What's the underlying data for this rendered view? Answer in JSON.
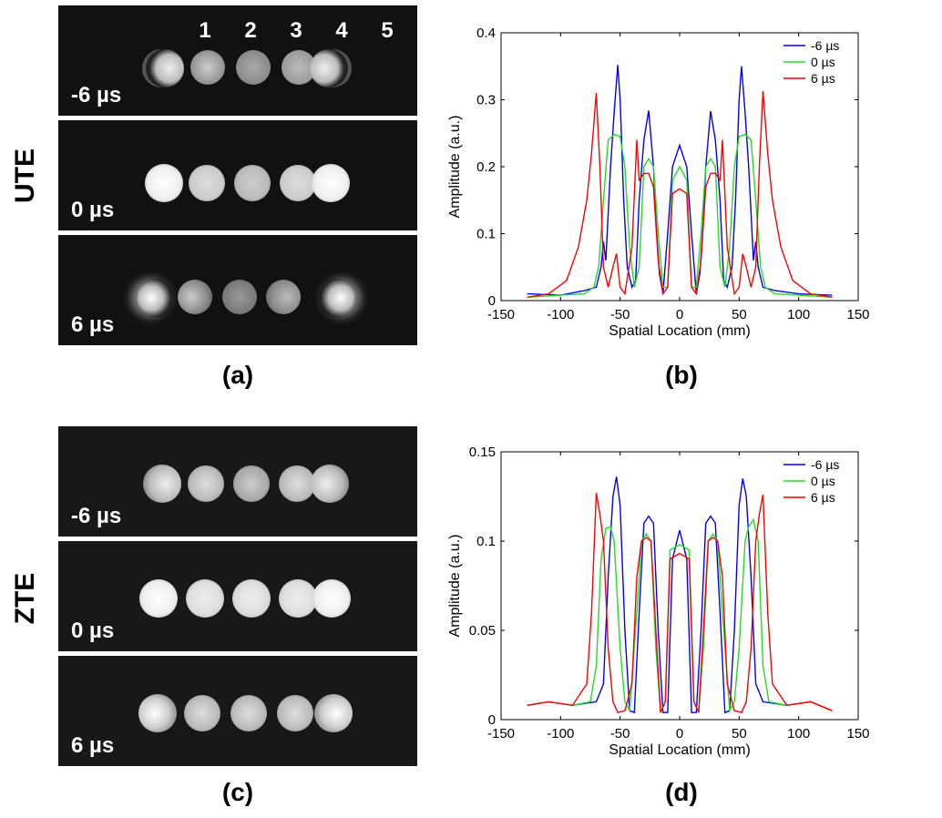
{
  "labels": {
    "ute": "UTE",
    "zte": "ZTE",
    "panel_a": "(a)",
    "panel_b": "(b)",
    "panel_c": "(c)",
    "panel_d": "(d)"
  },
  "images": {
    "column_numbers": [
      "1",
      "2",
      "3",
      "4",
      "5"
    ],
    "ute_times": [
      "-6 µs",
      "0 µs",
      "6 µs"
    ],
    "zte_times": [
      "-6 µs",
      "0 µs",
      "6 µs"
    ]
  },
  "colors": {
    "neg6": "#0000ff",
    "zero": "#22dd22",
    "pos6": "#ff0000"
  },
  "chart_data": [
    {
      "type": "line",
      "panel": "(b)",
      "xlabel": "Spatial Location (mm)",
      "ylabel": "Amplitude (a.u.)",
      "xlim": [
        -150,
        150
      ],
      "ylim": [
        0,
        0.4
      ],
      "xticks": [
        -150,
        -100,
        -50,
        0,
        50,
        100,
        150
      ],
      "yticks": [
        0,
        0.1,
        0.2,
        0.3,
        0.4
      ],
      "ytick_labels": [
        "0",
        "0.1",
        "0.2",
        "0.3",
        "0.4"
      ],
      "legend": "top-right",
      "series": [
        {
          "name": "-6 µs",
          "color": "#0000ff",
          "x": [
            -128,
            -100,
            -80,
            -70,
            -66,
            -64,
            -62,
            -58,
            -55,
            -52,
            -50,
            -47,
            -44,
            -40,
            -37,
            -34,
            -30,
            -26,
            -22,
            -20,
            -17,
            -14,
            -10,
            -6,
            0,
            6,
            10,
            14,
            17,
            20,
            22,
            26,
            30,
            34,
            37,
            40,
            44,
            47,
            50,
            52,
            55,
            58,
            62,
            64,
            66,
            70,
            80,
            100,
            128
          ],
          "y": [
            0.01,
            0.008,
            0.015,
            0.02,
            0.05,
            0.088,
            0.06,
            0.2,
            0.28,
            0.352,
            0.3,
            0.15,
            0.05,
            0.02,
            0.03,
            0.15,
            0.24,
            0.284,
            0.2,
            0.12,
            0.04,
            0.01,
            0.1,
            0.2,
            0.232,
            0.2,
            0.1,
            0.01,
            0.04,
            0.12,
            0.2,
            0.283,
            0.24,
            0.15,
            0.03,
            0.02,
            0.05,
            0.15,
            0.3,
            0.35,
            0.28,
            0.2,
            0.06,
            0.088,
            0.05,
            0.02,
            0.015,
            0.01,
            0.008
          ]
        },
        {
          "name": "0 µs",
          "color": "#22dd22",
          "x": [
            -128,
            -100,
            -80,
            -72,
            -68,
            -64,
            -60,
            -55,
            -50,
            -46,
            -42,
            -38,
            -34,
            -30,
            -26,
            -22,
            -18,
            -14,
            -10,
            -6,
            0,
            6,
            10,
            14,
            18,
            22,
            26,
            30,
            34,
            38,
            42,
            46,
            50,
            55,
            60,
            64,
            68,
            72,
            80,
            100,
            128
          ],
          "y": [
            0.005,
            0.008,
            0.01,
            0.02,
            0.05,
            0.15,
            0.24,
            0.248,
            0.245,
            0.2,
            0.08,
            0.02,
            0.05,
            0.2,
            0.212,
            0.2,
            0.1,
            0.02,
            0.02,
            0.18,
            0.2,
            0.18,
            0.02,
            0.02,
            0.1,
            0.2,
            0.212,
            0.2,
            0.05,
            0.02,
            0.08,
            0.2,
            0.245,
            0.248,
            0.24,
            0.15,
            0.05,
            0.02,
            0.01,
            0.008,
            0.005
          ]
        },
        {
          "name": "6 µs",
          "color": "#ff0000",
          "x": [
            -128,
            -110,
            -95,
            -85,
            -78,
            -74,
            -70,
            -67,
            -64,
            -60,
            -56,
            -53,
            -50,
            -46,
            -40,
            -36,
            -34,
            -30,
            -26,
            -22,
            -18,
            -14,
            -10,
            -6,
            0,
            6,
            10,
            14,
            18,
            22,
            26,
            30,
            34,
            36,
            40,
            46,
            50,
            53,
            56,
            60,
            64,
            67,
            70,
            74,
            78,
            85,
            95,
            110,
            128
          ],
          "y": [
            0.005,
            0.01,
            0.03,
            0.08,
            0.15,
            0.22,
            0.31,
            0.2,
            0.05,
            0.02,
            0.05,
            0.07,
            0.02,
            0.01,
            0.08,
            0.24,
            0.18,
            0.19,
            0.19,
            0.17,
            0.06,
            0.01,
            0.02,
            0.16,
            0.167,
            0.16,
            0.02,
            0.01,
            0.06,
            0.17,
            0.19,
            0.19,
            0.18,
            0.24,
            0.08,
            0.01,
            0.02,
            0.07,
            0.05,
            0.02,
            0.05,
            0.2,
            0.313,
            0.22,
            0.15,
            0.08,
            0.03,
            0.01,
            0.005
          ]
        }
      ]
    },
    {
      "type": "line",
      "panel": "(d)",
      "xlabel": "Spatial Location (mm)",
      "ylabel": "Amplitude (a.u.)",
      "xlim": [
        -150,
        150
      ],
      "ylim": [
        0,
        0.15
      ],
      "xticks": [
        -150,
        -100,
        -50,
        0,
        50,
        100,
        150
      ],
      "yticks": [
        0,
        0.05,
        0.1,
        0.15
      ],
      "ytick_labels": [
        "0",
        "0.05",
        "0.1",
        "0.15"
      ],
      "legend": "top-right",
      "series": [
        {
          "name": "-6 µs",
          "color": "#0000ff",
          "x": [
            -128,
            -110,
            -90,
            -70,
            -64,
            -60,
            -56,
            -53,
            -50,
            -46,
            -42,
            -38,
            -34,
            -30,
            -26,
            -22,
            -18,
            -14,
            -10,
            -6,
            0,
            6,
            10,
            14,
            18,
            22,
            26,
            30,
            34,
            38,
            42,
            46,
            50,
            53,
            56,
            60,
            64,
            70,
            90,
            110,
            128
          ],
          "y": [
            0.008,
            0.01,
            0.008,
            0.01,
            0.02,
            0.08,
            0.125,
            0.136,
            0.12,
            0.05,
            0.005,
            0.004,
            0.06,
            0.11,
            0.114,
            0.11,
            0.05,
            0.004,
            0.004,
            0.09,
            0.106,
            0.09,
            0.004,
            0.004,
            0.05,
            0.11,
            0.114,
            0.11,
            0.06,
            0.004,
            0.005,
            0.05,
            0.12,
            0.135,
            0.125,
            0.08,
            0.02,
            0.01,
            0.008,
            0.01,
            0.005
          ]
        },
        {
          "name": "0 µs",
          "color": "#22dd22",
          "x": [
            -128,
            -110,
            -90,
            -75,
            -70,
            -66,
            -62,
            -58,
            -55,
            -50,
            -46,
            -42,
            -36,
            -32,
            -28,
            -24,
            -20,
            -16,
            -12,
            -8,
            0,
            8,
            12,
            16,
            20,
            24,
            28,
            32,
            36,
            42,
            46,
            50,
            55,
            58,
            62,
            66,
            70,
            75,
            90,
            110,
            128
          ],
          "y": [
            0.008,
            0.01,
            0.008,
            0.01,
            0.03,
            0.09,
            0.107,
            0.108,
            0.1,
            0.04,
            0.01,
            0.005,
            0.06,
            0.1,
            0.104,
            0.1,
            0.04,
            0.004,
            0.01,
            0.095,
            0.098,
            0.095,
            0.01,
            0.004,
            0.04,
            0.1,
            0.104,
            0.1,
            0.06,
            0.005,
            0.01,
            0.04,
            0.1,
            0.108,
            0.112,
            0.1,
            0.03,
            0.01,
            0.008,
            0.01,
            0.005
          ]
        },
        {
          "name": "6 µs",
          "color": "#ff0000",
          "x": [
            -128,
            -110,
            -90,
            -78,
            -74,
            -70,
            -67,
            -64,
            -60,
            -56,
            -52,
            -46,
            -40,
            -36,
            -32,
            -28,
            -24,
            -20,
            -16,
            -12,
            -8,
            0,
            8,
            12,
            16,
            20,
            24,
            28,
            32,
            36,
            40,
            46,
            52,
            56,
            60,
            64,
            67,
            70,
            74,
            78,
            90,
            110,
            128
          ],
          "y": [
            0.008,
            0.01,
            0.008,
            0.02,
            0.06,
            0.127,
            0.115,
            0.1,
            0.04,
            0.01,
            0.004,
            0.005,
            0.02,
            0.08,
            0.1,
            0.102,
            0.1,
            0.05,
            0.004,
            0.01,
            0.09,
            0.093,
            0.09,
            0.01,
            0.004,
            0.05,
            0.1,
            0.102,
            0.1,
            0.08,
            0.02,
            0.005,
            0.004,
            0.01,
            0.04,
            0.1,
            0.115,
            0.126,
            0.06,
            0.02,
            0.008,
            0.01,
            0.005
          ]
        }
      ]
    }
  ]
}
